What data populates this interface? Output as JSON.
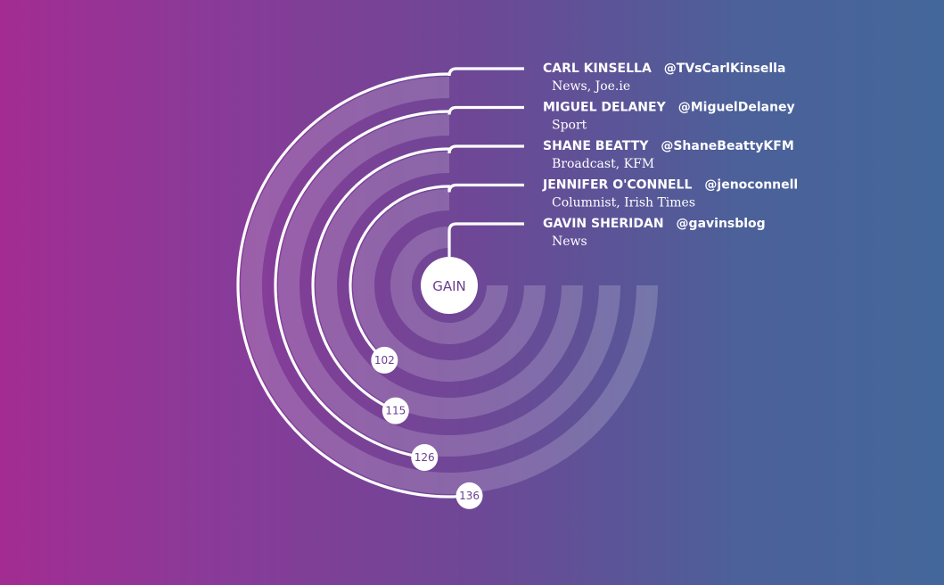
{
  "chart_data": {
    "type": "radial-bar",
    "center_label": "GAIN",
    "max_value": 198,
    "series": [
      {
        "name": "CARL KINSELLA",
        "handle": "@TVsCarlKinsella",
        "description": "News, Joe.ie",
        "value": 136
      },
      {
        "name": "MIGUEL DELANEY",
        "handle": "@MiguelDelaney",
        "description": "Sport",
        "value": 126
      },
      {
        "name": "SHANE BEATTY",
        "handle": "@ShaneBeattyKFM",
        "description": "Broadcast, KFM",
        "value": 115
      },
      {
        "name": "JENNIFER O'CONNELL",
        "handle": "@jenoconnell",
        "description": "Columnist, Irish Times",
        "value": 102
      },
      {
        "name": "GAVIN SHERIDAN",
        "handle": "@gavinsblog",
        "description": "News",
        "value": 0
      }
    ],
    "colors": {
      "ring_fill": "#ffffff",
      "ring_line": "#ffffff",
      "center_text": "#6a3f8f"
    }
  }
}
